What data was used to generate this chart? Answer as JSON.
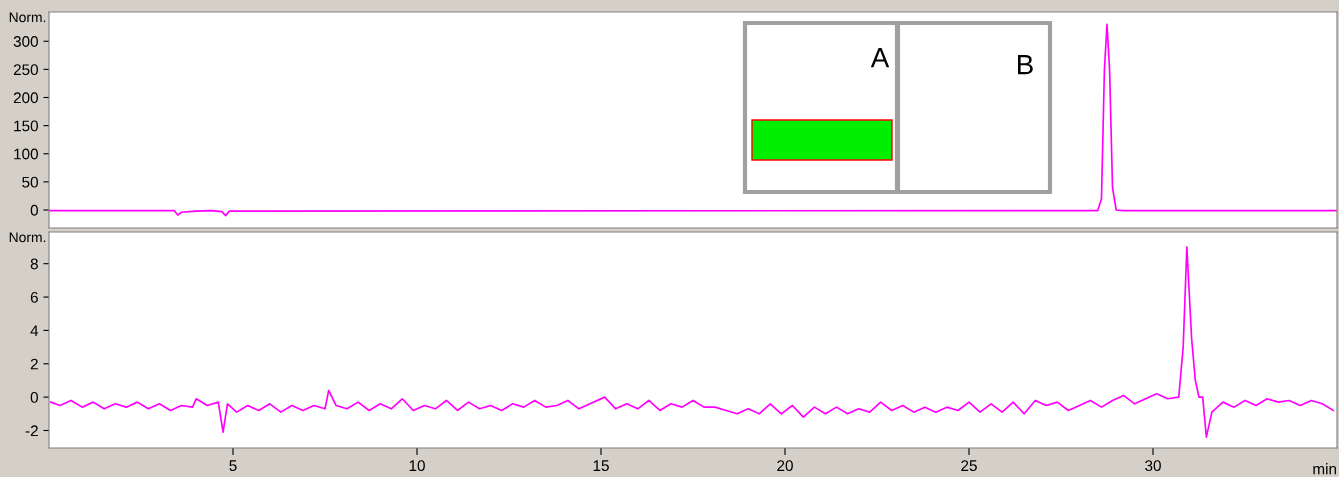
{
  "chart_data": [
    {
      "type": "line",
      "ylabel": "Norm.",
      "xlim": [
        0,
        35
      ],
      "ylim": [
        -32,
        352
      ],
      "yticks": [
        0,
        50,
        100,
        150,
        200,
        250,
        300
      ],
      "tick_labels": "y",
      "grid": false,
      "legend": false,
      "annotations": [
        "A",
        "B"
      ],
      "series": [
        {
          "color": "#ff00ff",
          "x": [
            0,
            3.4,
            3.5,
            3.6,
            4.0,
            4.4,
            4.7,
            4.8,
            4.9,
            27.9,
            28.5,
            28.6,
            28.68,
            28.75,
            28.82,
            28.9,
            29.0,
            29.2,
            35
          ],
          "values": [
            -1,
            -1,
            -9,
            -4,
            -2,
            -1,
            -3,
            -10,
            -2,
            -1,
            -1,
            20,
            250,
            330,
            250,
            40,
            0,
            -1,
            -1
          ]
        }
      ]
    },
    {
      "type": "line",
      "ylabel": "Norm.",
      "xlabel": "min",
      "xlim": [
        0,
        35
      ],
      "ylim": [
        -3.05,
        9.9
      ],
      "xticks": [
        5,
        10,
        15,
        20,
        25,
        30
      ],
      "yticks": [
        -2,
        0,
        2,
        4,
        6,
        8
      ],
      "grid": false,
      "legend": false,
      "series": [
        {
          "color": "#ff00ff",
          "x": [
            0.05,
            0.3,
            0.6,
            0.9,
            1.2,
            1.5,
            1.8,
            2.1,
            2.4,
            2.7,
            3.0,
            3.3,
            3.6,
            3.9,
            4.0,
            4.3,
            4.6,
            4.73,
            4.85,
            5.1,
            5.4,
            5.7,
            6.0,
            6.3,
            6.6,
            6.9,
            7.2,
            7.5,
            7.6,
            7.8,
            8.1,
            8.4,
            8.7,
            9.0,
            9.3,
            9.6,
            9.9,
            10.2,
            10.5,
            10.8,
            11.1,
            11.4,
            11.7,
            12.0,
            12.3,
            12.6,
            12.9,
            13.2,
            13.5,
            13.8,
            14.1,
            14.4,
            14.7,
            15.1,
            15.4,
            15.7,
            16.0,
            16.3,
            16.6,
            16.9,
            17.2,
            17.5,
            17.8,
            18.1,
            18.4,
            18.7,
            19.0,
            19.3,
            19.6,
            19.9,
            20.2,
            20.5,
            20.8,
            21.1,
            21.4,
            21.7,
            22.0,
            22.3,
            22.6,
            22.9,
            23.2,
            23.5,
            23.8,
            24.1,
            24.4,
            24.7,
            25.0,
            25.3,
            25.6,
            25.9,
            26.2,
            26.5,
            26.8,
            27.1,
            27.4,
            27.7,
            28.0,
            28.3,
            28.6,
            28.9,
            29.2,
            29.5,
            29.8,
            30.1,
            30.4,
            30.7,
            30.82,
            30.92,
            31.05,
            31.15,
            31.25,
            31.35,
            31.45,
            31.6,
            31.9,
            32.2,
            32.5,
            32.8,
            33.1,
            33.4,
            33.7,
            34.0,
            34.3,
            34.6,
            34.9
          ],
          "values": [
            -0.3,
            -0.5,
            -0.2,
            -0.6,
            -0.3,
            -0.7,
            -0.4,
            -0.6,
            -0.3,
            -0.7,
            -0.4,
            -0.8,
            -0.5,
            -0.6,
            -0.1,
            -0.5,
            -0.3,
            -2.1,
            -0.4,
            -0.9,
            -0.5,
            -0.8,
            -0.4,
            -0.9,
            -0.5,
            -0.8,
            -0.5,
            -0.7,
            0.4,
            -0.5,
            -0.7,
            -0.3,
            -0.8,
            -0.4,
            -0.7,
            -0.1,
            -0.8,
            -0.5,
            -0.7,
            -0.2,
            -0.8,
            -0.3,
            -0.7,
            -0.5,
            -0.8,
            -0.4,
            -0.6,
            -0.2,
            -0.6,
            -0.5,
            -0.2,
            -0.7,
            -0.4,
            0.0,
            -0.7,
            -0.4,
            -0.7,
            -0.2,
            -0.8,
            -0.4,
            -0.6,
            -0.2,
            -0.6,
            -0.6,
            -0.8,
            -1.0,
            -0.7,
            -1.0,
            -0.4,
            -1.0,
            -0.5,
            -1.2,
            -0.6,
            -1.0,
            -0.6,
            -1.0,
            -0.7,
            -0.9,
            -0.3,
            -0.8,
            -0.5,
            -0.9,
            -0.6,
            -0.9,
            -0.6,
            -0.8,
            -0.3,
            -0.9,
            -0.4,
            -0.9,
            -0.3,
            -1.0,
            -0.2,
            -0.5,
            -0.3,
            -0.8,
            -0.5,
            -0.2,
            -0.6,
            -0.2,
            0.1,
            -0.4,
            -0.1,
            0.2,
            -0.1,
            0.0,
            3.0,
            9.0,
            3.5,
            1.0,
            0.0,
            0.0,
            -2.4,
            -0.9,
            -0.3,
            -0.6,
            -0.2,
            -0.5,
            -0.1,
            -0.3,
            -0.2,
            -0.5,
            -0.2,
            -0.4,
            -0.8
          ]
        }
      ]
    }
  ]
}
